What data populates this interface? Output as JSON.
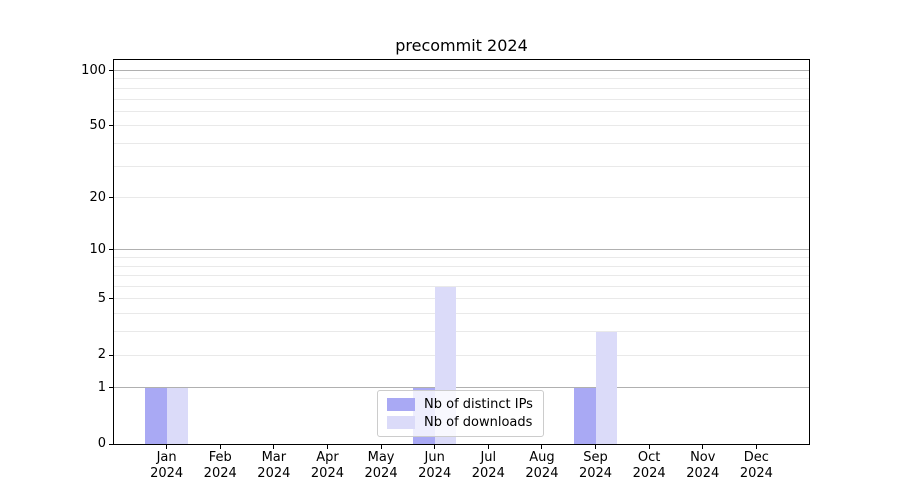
{
  "chart_data": {
    "type": "bar",
    "title": "precommit 2024",
    "categories": [
      "Jan",
      "Feb",
      "Mar",
      "Apr",
      "May",
      "Jun",
      "Jul",
      "Aug",
      "Sep",
      "Oct",
      "Nov",
      "Dec"
    ],
    "category_year": "2024",
    "series": [
      {
        "name": "Nb of distinct IPs",
        "color": "#a9a9f4",
        "values": [
          1,
          0,
          0,
          0,
          0,
          1,
          0,
          0,
          1,
          0,
          0,
          0
        ]
      },
      {
        "name": "Nb of downloads",
        "color": "#dbdbf9",
        "values": [
          1,
          0,
          0,
          0,
          0,
          6,
          0,
          0,
          3,
          0,
          0,
          0
        ]
      }
    ],
    "y_axis": {
      "scale": "log1p",
      "ticks": [
        0,
        1,
        2,
        5,
        10,
        20,
        50,
        100
      ],
      "major_gridlines": [
        1,
        10,
        100
      ],
      "minor_gridlines": [
        2,
        3,
        4,
        5,
        6,
        7,
        8,
        9,
        20,
        30,
        40,
        50,
        60,
        70,
        80,
        90
      ],
      "ymax": 100
    },
    "xlabel": "",
    "ylabel": "",
    "grid": true,
    "legend_position": "lower center",
    "colors": {
      "major_grid": "#b0b0b0",
      "minor_grid": "#e9e9e9",
      "spine": "#000000",
      "background": "#ffffff"
    }
  }
}
